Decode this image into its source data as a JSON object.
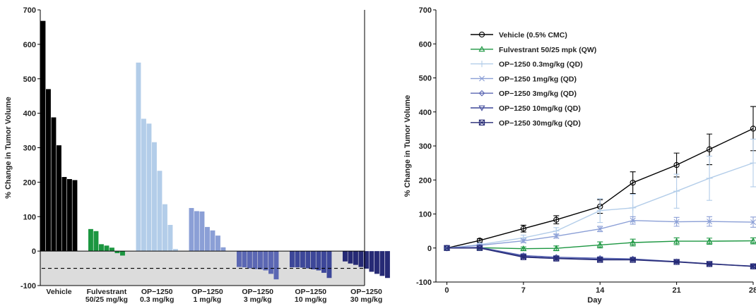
{
  "chart_data": [
    {
      "type": "bar",
      "subtype": "waterfall",
      "ylabel": "% Change in Tumor Volume",
      "ylim": [
        -100,
        700
      ],
      "yticks": [
        -100,
        0,
        100,
        200,
        300,
        400,
        500,
        600,
        700
      ],
      "reference_line": -50,
      "groups": [
        {
          "label_lines": [
            "Vehicle"
          ],
          "color": "#000000",
          "values": [
            668,
            470,
            388,
            307,
            215,
            209,
            206
          ]
        },
        {
          "label_lines": [
            "Fulvestrant",
            "50/25 mg/kg"
          ],
          "color": "#1b9640",
          "values": [
            64,
            58,
            20,
            16,
            10,
            -6,
            -13
          ]
        },
        {
          "label_lines": [
            "OP−1250",
            "0.3 mg/kg"
          ],
          "color": "#b3cde9",
          "values": [
            547,
            384,
            370,
            316,
            233,
            136,
            76,
            6
          ]
        },
        {
          "label_lines": [
            "OP−1250",
            "1 mg/kg"
          ],
          "color": "#8b9fd6",
          "values": [
            125,
            116,
            115,
            70,
            60,
            45,
            11
          ]
        },
        {
          "label_lines": [
            "OP−1250",
            "3 mg/kg"
          ],
          "color": "#5b67b3",
          "values": [
            -46,
            -47,
            -50,
            -52,
            -53,
            -56,
            -66,
            -82
          ]
        },
        {
          "label_lines": [
            "OP−1250",
            "10 mg/kg"
          ],
          "color": "#3d4799",
          "values": [
            -47,
            -47,
            -48,
            -50,
            -53,
            -56,
            -63,
            -78
          ]
        },
        {
          "label_lines": [
            "OP−1250",
            "30 mg/kg"
          ],
          "color": "#262a75",
          "values": [
            -30,
            -36,
            -40,
            -46,
            -51,
            -60,
            -66,
            -72,
            -78
          ]
        }
      ]
    },
    {
      "type": "line",
      "xlabel": "Day",
      "ylabel": "% Change in Tumor Volume",
      "xlim": [
        -1,
        28
      ],
      "ylim": [
        -100,
        700
      ],
      "xticks": [
        0,
        7,
        14,
        21,
        28
      ],
      "yticks": [
        -100,
        0,
        100,
        200,
        300,
        400,
        500,
        600,
        700
      ],
      "legend_position": "top-left",
      "x": [
        0,
        3,
        7,
        10,
        14,
        17,
        21,
        24,
        28
      ],
      "series": [
        {
          "name": "Vehicle (0.5% CMC)",
          "color": "#000000",
          "marker": "circle",
          "values": [
            0,
            22,
            57,
            83,
            122,
            192,
            244,
            290,
            351
          ],
          "errors": [
            0,
            5,
            10,
            12,
            20,
            32,
            35,
            45,
            65
          ]
        },
        {
          "name": "Fulvestrant 50/25 mpk (QW)",
          "color": "#1b9640",
          "marker": "triangle-up",
          "values": [
            0,
            1,
            -2,
            -1,
            9,
            16,
            20,
            20,
            21
          ],
          "errors": [
            0,
            3,
            5,
            7,
            9,
            10,
            10,
            9,
            9
          ]
        },
        {
          "name": "OP−1250 0.3mg/kg (QD)",
          "color": "#b3cde9",
          "marker": "plus",
          "values": [
            0,
            10,
            30,
            50,
            110,
            118,
            167,
            205,
            250
          ],
          "errors": [
            0,
            5,
            8,
            10,
            35,
            40,
            50,
            65,
            70
          ]
        },
        {
          "name": "OP−1250 1mg/kg (QD)",
          "color": "#8b9fd6",
          "marker": "x",
          "values": [
            0,
            8,
            21,
            35,
            56,
            81,
            77,
            78,
            76
          ],
          "errors": [
            0,
            3,
            5,
            6,
            8,
            11,
            13,
            14,
            15
          ]
        },
        {
          "name": "OP−1250 3mg/kg (QD)",
          "color": "#5b67b3",
          "marker": "diamond",
          "values": [
            0,
            2,
            -22,
            -27,
            -30,
            -32,
            -40,
            -47,
            -53
          ],
          "errors": [
            0,
            2,
            5,
            4,
            4,
            3,
            3,
            3,
            3
          ]
        },
        {
          "name": "OP−1250 10mg/kg (QD)",
          "color": "#3d4799",
          "marker": "triangle-down",
          "values": [
            0,
            1,
            -25,
            -30,
            -33,
            -34,
            -40,
            -46,
            -54
          ],
          "errors": [
            0,
            2,
            4,
            4,
            4,
            3,
            3,
            3,
            3
          ]
        },
        {
          "name": "OP−1250 30mg/kg (QD)",
          "color": "#262a75",
          "marker": "square-x",
          "values": [
            0,
            0,
            -27,
            -31,
            -35,
            -35,
            -41,
            -47,
            -54
          ],
          "errors": [
            0,
            2,
            4,
            4,
            4,
            3,
            3,
            3,
            3
          ]
        }
      ]
    }
  ]
}
